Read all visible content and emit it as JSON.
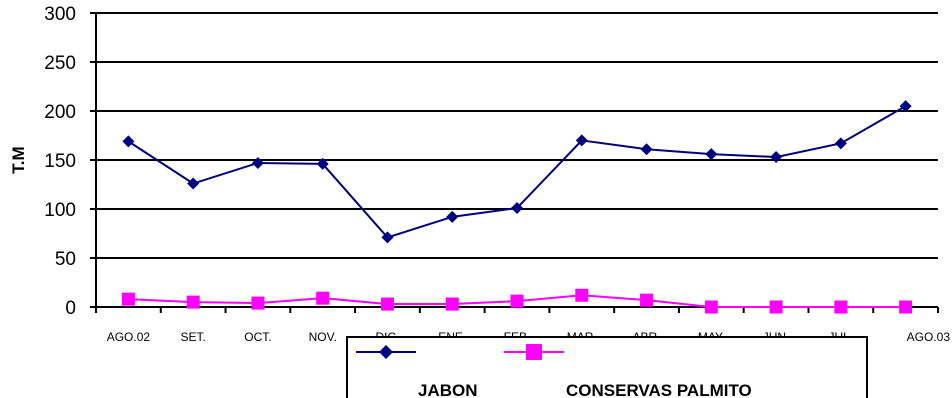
{
  "chart_data": {
    "type": "line",
    "categories": [
      "AGO.02",
      "SET.",
      "OCT.",
      "NOV.",
      "DIC.",
      "ENE.",
      "FEB.",
      "MAR.",
      "ABR.",
      "MAY.",
      "JUN.",
      "JUL.",
      "AGO.03"
    ],
    "series": [
      {
        "name": "JABON",
        "values": [
          169,
          126,
          147,
          146,
          71,
          92,
          101,
          170,
          161,
          156,
          153,
          167,
          205
        ],
        "color": "#000080",
        "marker": "diamond"
      },
      {
        "name": "CONSERVAS PALMITO",
        "values": [
          8,
          5,
          4,
          9,
          3,
          3,
          6,
          12,
          7,
          0,
          0,
          0,
          0
        ],
        "color": "#ff00ff",
        "marker": "square"
      }
    ],
    "title": "",
    "xlabel": "",
    "ylabel": "T.M",
    "ylim": [
      0,
      300
    ],
    "yticks": [
      0,
      50,
      100,
      150,
      200,
      250,
      300
    ],
    "grid": "horizontal",
    "legend_position": "bottom"
  }
}
